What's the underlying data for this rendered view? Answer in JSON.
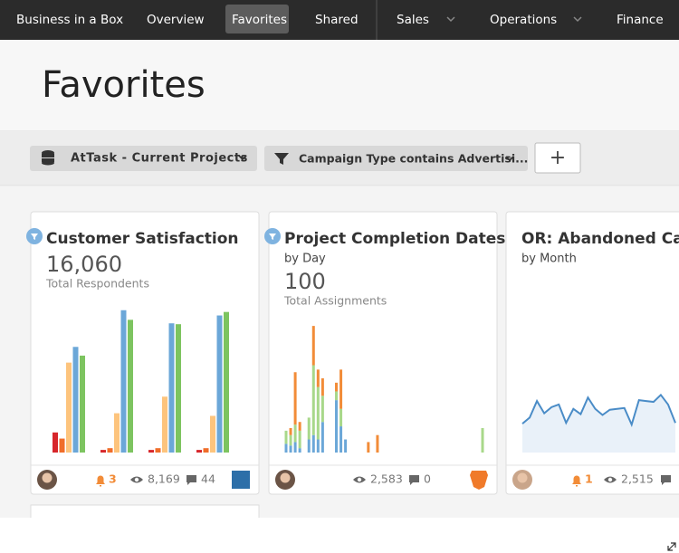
{
  "nav": {
    "items": [
      "Business in a Box",
      "Overview",
      "Favorites",
      "Shared",
      "Sales",
      "Operations",
      "Finance"
    ],
    "active": 2
  },
  "page_title": "Favorites",
  "filters": [
    "AtTask - Current Projects",
    "Campaign Type contains Advertisi..."
  ],
  "add_button": "+",
  "cards": [
    {
      "title": "Customer Satisfaction",
      "metric": "16,060",
      "metric_label": "Total Respondents",
      "chart": {
        "type": "bar",
        "ylim": [
          0,
          170
        ],
        "series": [
          {
            "color": "#d7262b",
            "values": [
              23,
              3,
              3,
              3
            ]
          },
          {
            "color": "#f06d2a",
            "values": [
              16,
              5,
              5,
              5
            ]
          },
          {
            "color": "#fdc47d",
            "values": [
              103,
              45,
              64,
              42
            ]
          },
          {
            "color": "#6ba7d8",
            "values": [
              121,
              163,
              148,
              157
            ]
          },
          {
            "color": "#7dc460",
            "values": [
              111,
              152,
              147,
              161
            ]
          }
        ]
      },
      "footer": {
        "alerts": 3,
        "views": "8,169",
        "comments": 44
      }
    },
    {
      "title": "Project Completion Dates",
      "subtitle": "by Day",
      "metric": 100,
      "metric_label": "Total Assignments",
      "chart": {
        "type": "stacked_bar",
        "xlim": [
          0,
          43
        ],
        "ylim": [
          0,
          170
        ],
        "x": [
          0,
          1,
          2,
          3,
          5,
          6,
          7,
          8,
          11,
          12,
          13,
          18,
          20,
          43
        ],
        "series": [
          {
            "color": "#6ba7d8",
            "values": [
              10,
              8,
              12,
              5,
              15,
              20,
              15,
              35,
              60,
              30,
              15,
              0,
              0,
              0
            ]
          },
          {
            "color": "#a8d88a",
            "values": [
              15,
              12,
              20,
              20,
              25,
              80,
              60,
              30,
              10,
              20,
              0,
              0,
              0,
              28
            ]
          },
          {
            "color": "#f28c38",
            "values": [
              0,
              8,
              60,
              10,
              0,
              45,
              20,
              20,
              10,
              45,
              0,
              12,
              20,
              0
            ]
          }
        ]
      },
      "footer": {
        "views": "2,583",
        "comments": 0
      }
    },
    {
      "title": "OR: Abandoned Cart Value",
      "subtitle": "by Month",
      "chart": {
        "type": "line",
        "color": "#4a8cc7",
        "ylim": [
          0,
          170
        ],
        "values": [
          33,
          40,
          59,
          45,
          52,
          55,
          34,
          50,
          44,
          63,
          50,
          43,
          49,
          50,
          51,
          32,
          60,
          59,
          58,
          66,
          55,
          34
        ]
      },
      "footer": {
        "alerts": 1,
        "views": "2,515"
      }
    }
  ]
}
